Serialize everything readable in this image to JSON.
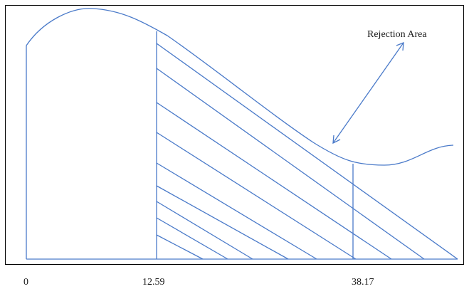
{
  "diagram": {
    "annotation": "Rejection Area",
    "tick_labels": [
      "0",
      "12.59",
      "38.17"
    ],
    "colors": {
      "line": "#4a7ac9",
      "text": "#1a1a1a",
      "border": "#000000",
      "background": "#ffffff"
    }
  }
}
